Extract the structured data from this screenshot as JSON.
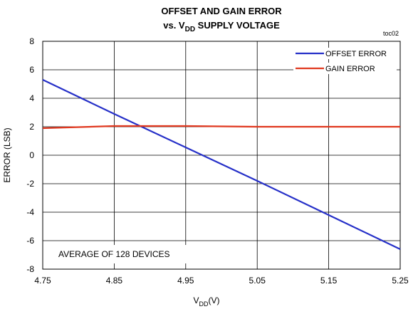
{
  "chart_data": {
    "type": "line",
    "title": "OFFSET  AND GAIN ERROR",
    "subtitle": [
      "vs. V",
      "DD",
      " SUPPLY VOLTAGE"
    ],
    "note": "toc02",
    "xlabel": [
      "V",
      "DD",
      "(V)"
    ],
    "ylabel": "ERROR (LSB)",
    "annotation": "AVERAGE OF 128 DEVICES",
    "x": [
      4.75,
      4.85,
      4.95,
      5.05,
      5.15,
      5.25
    ],
    "series": [
      {
        "name": "OFFSET ERROR",
        "color": "#2630c8",
        "values": [
          5.3,
          2.9,
          0.55,
          -1.8,
          -4.2,
          -6.6
        ]
      },
      {
        "name": "GAIN ERROR",
        "color": "#e0381f",
        "values": [
          1.9,
          2.05,
          2.05,
          2.0,
          2.0,
          2.0
        ]
      }
    ],
    "xlim": [
      4.75,
      5.25
    ],
    "xticks": [
      4.75,
      4.85,
      4.95,
      5.05,
      5.15,
      5.25
    ],
    "ylim": [
      -8,
      8
    ],
    "yticks": [
      -8,
      -6,
      -4,
      -2,
      0,
      2,
      4,
      6,
      8
    ],
    "grid": true,
    "legend": "upper right"
  }
}
